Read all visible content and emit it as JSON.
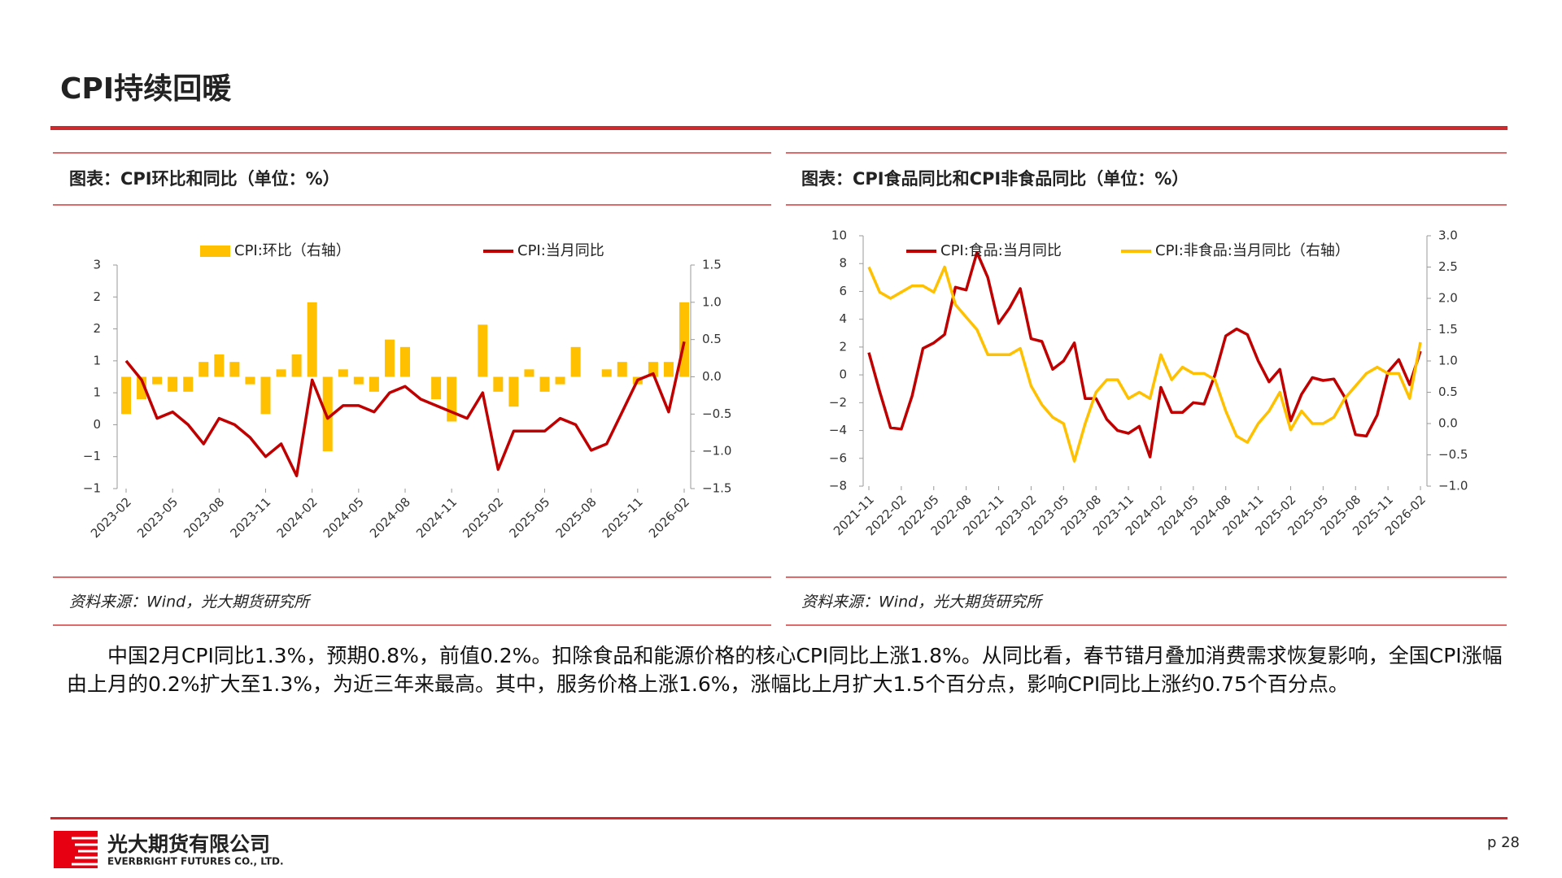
{
  "header": {
    "title": "CPI持续回暖"
  },
  "chart_data": [
    {
      "type": "combo",
      "title": "图表：CPI环比和同比（单位：%）",
      "source": "资料来源：Wind，光大期货研究所",
      "legend": "top",
      "categories": [
        "2023-02",
        null,
        null,
        "2023-05",
        null,
        null,
        "2023-08",
        null,
        null,
        "2023-11",
        null,
        null,
        "2024-02",
        null,
        null,
        "2024-05",
        null,
        null,
        "2024-08",
        null,
        null,
        "2024-11",
        null,
        null,
        "2025-02",
        null,
        null,
        "2025-05",
        null,
        null,
        "2025-08",
        null,
        null,
        "2025-11",
        null,
        null,
        "2026-02"
      ],
      "series": [
        {
          "name": "CPI:环比（右轴）",
          "type": "bar",
          "axis": "y2",
          "color": "#ffc000",
          "values": [
            -0.5,
            -0.3,
            -0.1,
            -0.2,
            -0.2,
            0.2,
            0.3,
            0.2,
            -0.1,
            -0.5,
            0.1,
            0.3,
            1.0,
            -1.0,
            0.1,
            -0.1,
            -0.2,
            0.5,
            0.4,
            0.0,
            -0.3,
            -0.6,
            0.0,
            0.7,
            -0.2,
            -0.4,
            0.1,
            -0.2,
            -0.1,
            0.4,
            0.0,
            0.1,
            0.2,
            -0.1,
            0.2,
            0.2,
            1.0
          ]
        },
        {
          "name": "CPI:当月同比",
          "type": "line",
          "color": "#c00000",
          "values": [
            1.0,
            0.7,
            0.1,
            0.2,
            0.0,
            -0.3,
            0.1,
            0.0,
            -0.2,
            -0.5,
            -0.3,
            -0.8,
            0.7,
            0.1,
            0.3,
            0.3,
            0.2,
            0.5,
            0.6,
            0.4,
            0.3,
            0.2,
            0.1,
            0.5,
            -0.7,
            -0.1,
            -0.1,
            -0.1,
            0.1,
            0.0,
            -0.4,
            -0.3,
            0.2,
            0.7,
            0.8,
            0.2,
            1.3
          ]
        }
      ],
      "ylim": [
        -1,
        2.5
      ],
      "yticks": [
        {
          "value": 2.5,
          "label": "3"
        },
        2,
        {
          "value": 1.5,
          "label": "2"
        },
        1,
        {
          "value": 0.5,
          "label": "1"
        },
        0,
        {
          "value": -0.5,
          "label": "−1"
        },
        {
          "value": -1,
          "label": "−1"
        }
      ],
      "y2lim": [
        -1.5,
        1.5
      ],
      "y2ticks": [
        1.5,
        {
          "value": 1,
          "label": "1.0"
        },
        0.5,
        {
          "value": 0,
          "label": "0.0"
        },
        {
          "value": -0.5,
          "label": "−0.5"
        },
        {
          "value": -1,
          "label": "−1.0"
        },
        {
          "value": -1.5,
          "label": "−1.5"
        }
      ]
    },
    {
      "type": "line",
      "title": "图表：CPI食品同比和CPI非食品同比（单位：%）",
      "source": "资料来源：Wind，光大期货研究所",
      "legend": "top",
      "categories": [
        "2021-11",
        null,
        null,
        "2022-02",
        null,
        null,
        "2022-05",
        null,
        null,
        "2022-08",
        null,
        null,
        "2022-11",
        null,
        null,
        "2023-02",
        null,
        null,
        "2023-05",
        null,
        null,
        "2023-08",
        null,
        null,
        "2023-11",
        null,
        null,
        "2024-02",
        null,
        null,
        "2024-05",
        null,
        null,
        "2024-08",
        null,
        null,
        "2024-11",
        null,
        null,
        "2025-02",
        null,
        null,
        "2025-05",
        null,
        null,
        "2025-08",
        null,
        null,
        "2025-11",
        null,
        null,
        "2026-02"
      ],
      "series": [
        {
          "name": "CPI:食品:当月同比",
          "type": "line",
          "color": "#c00000",
          "values": [
            1.6,
            -1.2,
            -3.8,
            -3.9,
            -1.5,
            1.9,
            2.3,
            2.9,
            6.3,
            6.1,
            8.8,
            7.0,
            3.7,
            4.8,
            6.2,
            2.6,
            2.4,
            0.4,
            1.0,
            2.3,
            -1.7,
            -1.7,
            -3.2,
            -4.0,
            -4.2,
            -3.7,
            -5.9,
            -0.9,
            -2.7,
            -2.7,
            -2.0,
            -2.1,
            0.0,
            2.8,
            3.3,
            2.9,
            1.0,
            -0.5,
            0.4,
            -3.3,
            -1.4,
            -0.2,
            -0.4,
            -0.3,
            -1.6,
            -4.3,
            -4.4,
            -2.9,
            0.2,
            1.1,
            -0.7,
            1.7
          ]
        },
        {
          "name": "CPI:非食品:当月同比（右轴）",
          "type": "line",
          "axis": "y2",
          "color": "#ffc000",
          "values": [
            2.5,
            2.1,
            2.0,
            2.1,
            2.2,
            2.2,
            2.1,
            2.5,
            1.9,
            1.7,
            1.5,
            1.1,
            1.1,
            1.1,
            1.2,
            0.6,
            0.3,
            0.1,
            0.0,
            -0.6,
            0.0,
            0.5,
            0.7,
            0.7,
            0.4,
            0.5,
            0.4,
            1.1,
            0.7,
            0.9,
            0.8,
            0.8,
            0.7,
            0.2,
            -0.2,
            -0.3,
            0.0,
            0.2,
            0.5,
            -0.1,
            0.2,
            0.0,
            0.0,
            0.1,
            0.4,
            0.6,
            0.8,
            0.9,
            0.8,
            0.8,
            0.4,
            1.3
          ]
        }
      ],
      "ylim": [
        -8,
        10
      ],
      "yticks": [
        10,
        8,
        6,
        4,
        2,
        0,
        {
          "value": -2,
          "label": "−2"
        },
        {
          "value": -4,
          "label": "−4"
        },
        {
          "value": -6,
          "label": "−6"
        },
        {
          "value": -8,
          "label": "−8"
        }
      ],
      "y2lim": [
        -1,
        3
      ],
      "y2ticks": [
        {
          "value": 3,
          "label": "3.0"
        },
        2.5,
        {
          "value": 2,
          "label": "2.0"
        },
        1.5,
        {
          "value": 1,
          "label": "1.0"
        },
        0.5,
        {
          "value": 0,
          "label": "0.0"
        },
        {
          "value": -0.5,
          "label": "−0.5"
        },
        {
          "value": -1,
          "label": "−1.0"
        }
      ]
    }
  ],
  "body": "中国2月CPI同比1.3%，预期0.8%，前值0.2%。扣除食品和能源价格的核心CPI同比上涨1.8%。从同比看，春节错月叠加消费需求恢复影响，全国CPI涨幅由上月的0.2%扩大至1.3%，为近三年来最高。其中，服务价格上涨1.6%，涨幅比上月扩大1.5个百分点，影响CPI同比上涨约0.75个百分点。",
  "footer": {
    "company_cn": "光大期货有限公司",
    "company_en": "EVERBRIGHT FUTURES CO., LTD.",
    "page": "p 28"
  }
}
